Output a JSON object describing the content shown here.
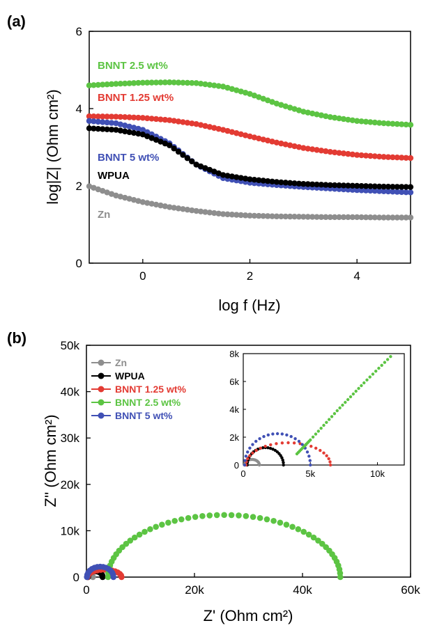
{
  "chart_data": [
    {
      "panel_label": "(a)",
      "type": "line",
      "xlabel": "log f (Hz)",
      "ylabel": "log|Z| (Ohm cm²)",
      "xlim": [
        -1,
        5
      ],
      "ylim": [
        0,
        6
      ],
      "x_ticks": [
        0,
        2,
        4
      ],
      "y_ticks": [
        0,
        2,
        4,
        6
      ],
      "grid": false,
      "legend": "inline labels",
      "series": [
        {
          "name": "BNNT 2.5 wt%",
          "color": "#5cc443",
          "x": [
            -1,
            -0.5,
            0,
            0.5,
            1,
            1.5,
            2,
            2.5,
            3,
            3.5,
            4,
            4.5,
            5
          ],
          "y": [
            4.6,
            4.64,
            4.67,
            4.68,
            4.66,
            4.57,
            4.38,
            4.13,
            3.92,
            3.78,
            3.68,
            3.62,
            3.58
          ]
        },
        {
          "name": "BNNT 1.25 wt%",
          "color": "#e33b33",
          "x": [
            -1,
            -0.5,
            0,
            0.5,
            1,
            1.5,
            2,
            2.5,
            3,
            3.5,
            4,
            4.5,
            5
          ],
          "y": [
            3.8,
            3.79,
            3.76,
            3.7,
            3.6,
            3.45,
            3.28,
            3.12,
            2.98,
            2.88,
            2.8,
            2.75,
            2.72
          ]
        },
        {
          "name": "BNNT 5 wt%",
          "color": "#4050b5",
          "x": [
            -1,
            -0.5,
            0,
            0.5,
            1,
            1.5,
            2,
            2.5,
            3,
            3.5,
            4,
            4.5,
            5
          ],
          "y": [
            3.68,
            3.62,
            3.45,
            3.1,
            2.55,
            2.2,
            2.08,
            2.02,
            1.97,
            1.93,
            1.89,
            1.86,
            1.83
          ]
        },
        {
          "name": "WPUA",
          "color": "#000000",
          "x": [
            -1,
            -0.5,
            0,
            0.5,
            1,
            1.5,
            2,
            2.5,
            3,
            3.5,
            4,
            4.5,
            5
          ],
          "y": [
            3.49,
            3.45,
            3.33,
            3.05,
            2.55,
            2.28,
            2.17,
            2.1,
            2.05,
            2.02,
            2.0,
            1.98,
            1.97
          ]
        },
        {
          "name": "Zn",
          "color": "#8e8e8e",
          "x": [
            -1,
            -0.5,
            0,
            0.5,
            1,
            1.5,
            2,
            2.5,
            3,
            3.5,
            4,
            4.5,
            5
          ],
          "y": [
            1.99,
            1.75,
            1.58,
            1.45,
            1.35,
            1.27,
            1.23,
            1.21,
            1.2,
            1.19,
            1.19,
            1.18,
            1.18
          ]
        }
      ]
    },
    {
      "panel_label": "(b)",
      "type": "scatter",
      "xlabel": "Z' (Ohm cm²)",
      "ylabel": "Z'' (Ohm cm²)",
      "xlim": [
        0,
        60000
      ],
      "ylim": [
        0,
        50000
      ],
      "x_ticks": [
        "0",
        "20k",
        "40k",
        "60k"
      ],
      "y_ticks": [
        "0",
        "10k",
        "20k",
        "30k",
        "40k",
        "50k"
      ],
      "grid": false,
      "legend": "top-left",
      "series": [
        {
          "name": "Zn",
          "color": "#8e8e8e",
          "arc": {
            "start": 100,
            "end": 1200,
            "peak": 400
          }
        },
        {
          "name": "WPUA",
          "color": "#000000",
          "arc": {
            "start": 300,
            "end": 3000,
            "peak": 1250
          }
        },
        {
          "name": "BNNT 1.25 wt%",
          "color": "#e33b33",
          "arc": {
            "start": 200,
            "end": 6500,
            "peak": 1600
          }
        },
        {
          "name": "BNNT 2.5 wt%",
          "color": "#5cc443",
          "arc": {
            "start": 4000,
            "end": 47000,
            "peak": 13400
          }
        },
        {
          "name": "BNNT 5 wt%",
          "color": "#4050b5",
          "arc": {
            "start": 100,
            "end": 5000,
            "peak": 2250
          }
        }
      ],
      "inset": {
        "xlim": [
          0,
          12000
        ],
        "ylim": [
          0,
          8000
        ],
        "x_ticks": [
          "0",
          "5k",
          "10k"
        ],
        "y_ticks": [
          "0",
          "2k",
          "4k",
          "6k",
          "8k"
        ],
        "green_line": {
          "x": [
            4000,
            5000,
            7000,
            9000,
            11200
          ],
          "y": [
            800,
            1800,
            3900,
            5900,
            8000
          ]
        }
      }
    }
  ]
}
